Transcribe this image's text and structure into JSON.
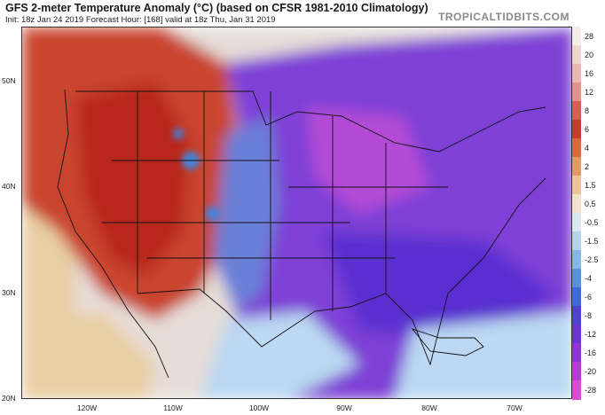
{
  "header": {
    "title": "GFS 2-meter Temperature Anomaly (°C) (based on CFSR 1981-2010 Climatology)",
    "subtitle": "Init: 18z Jan 24 2019   Forecast Hour: [168]   valid at 18z Thu, Jan 31 2019",
    "watermark": "TROPICALTIDBITS.COM"
  },
  "axes": {
    "lat_labels": [
      "50N",
      "40N",
      "30N",
      "20N"
    ],
    "lon_labels": [
      "120W",
      "110W",
      "100W",
      "90W",
      "80W",
      "70W"
    ]
  },
  "colorbar": {
    "labels": [
      "28",
      "20",
      "16",
      "12",
      "8",
      "6",
      "4",
      "2",
      "1.5",
      "0.5",
      "-0.5",
      "-1.5",
      "-2.5",
      "-4",
      "-6",
      "-8",
      "-12",
      "-16",
      "-20",
      "-28"
    ],
    "colors": [
      "#f3eeea",
      "#f0d6cf",
      "#ebb7b2",
      "#e2918b",
      "#d65f55",
      "#c93b2e",
      "#d86a3e",
      "#e49a67",
      "#ecc39b",
      "#f2e2c9",
      "#dce8ee",
      "#b4d4ea",
      "#84b8e2",
      "#5893d8",
      "#3d6ad8",
      "#4d41d6",
      "#6a34d6",
      "#8f35d6",
      "#b43ed5",
      "#d94cd3"
    ]
  },
  "map": {
    "colors": {
      "ocean_warm": "#e8cfa4",
      "west_warm": "#c9452f",
      "west_hot": "#b8281e",
      "plains_blue": "#6b7fd8",
      "east_purple": "#7e3fd6",
      "east_deep": "#5a2fd0",
      "midwest_magenta": "#b44bd6",
      "gulf_light": "#bcd8f2",
      "ocean_neutral": "#e6ddd8",
      "cold_spot": "#3e86e0",
      "border": "#111111"
    }
  }
}
